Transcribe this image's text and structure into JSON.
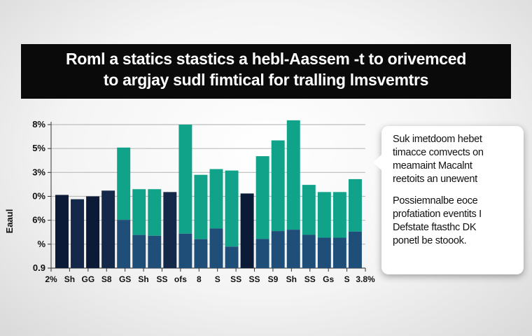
{
  "banner": {
    "line1": "Roml a statics stastics a hebl-Aassem -t to orivemced",
    "line2": "to argjay sudl fimtical for tralling lmsvemtrs"
  },
  "callout": {
    "para1": [
      "Suk imetdoom hebet",
      "timacce comvects on",
      "meamaint Macalnt",
      "reetoits an unewent"
    ],
    "para2": [
      "Possiemnalbe eoce",
      "profatiation eventits I",
      "Defstate ftasthc DK",
      "ponetl be stoook."
    ]
  },
  "colors": {
    "teal": "#10a38a",
    "blue": "#1f4f78",
    "navy": "#0b1a36",
    "banner": "#0a0a0a"
  },
  "chart_data": {
    "type": "bar",
    "ylabel": "Eaaul",
    "yticks": [
      "0.9",
      "%",
      "6%",
      "0%",
      "3%",
      "5%",
      "8%"
    ],
    "xticks": [
      "2%",
      "Sh",
      "GG",
      "S8",
      "GS",
      "Sh",
      "SS",
      "ofs",
      "8",
      "S",
      "SS",
      "SS",
      "S9",
      "Sh",
      "SS",
      "Gs",
      "S",
      "3.8%"
    ],
    "ylim": [
      0,
      1
    ],
    "grid": true,
    "bars": [
      {
        "total": 0.51,
        "teal": 0.0
      },
      {
        "total": 0.48,
        "teal": 0.0
      },
      {
        "total": 0.5,
        "teal": 0.0
      },
      {
        "total": 0.54,
        "teal": 0.0
      },
      {
        "total": 0.84,
        "teal": 0.6
      },
      {
        "total": 0.55,
        "teal": 0.58
      },
      {
        "total": 0.55,
        "teal": 0.59
      },
      {
        "total": 0.53,
        "teal": 0.0
      },
      {
        "total": 1.0,
        "teal": 0.76
      },
      {
        "total": 0.65,
        "teal": 0.69
      },
      {
        "total": 0.69,
        "teal": 0.6
      },
      {
        "total": 0.68,
        "teal": 0.78
      },
      {
        "total": 0.52,
        "teal": 0.0
      },
      {
        "total": 0.78,
        "teal": 0.74
      },
      {
        "total": 0.89,
        "teal": 0.71
      },
      {
        "total": 1.03,
        "teal": 0.74
      },
      {
        "total": 0.58,
        "teal": 0.6
      },
      {
        "total": 0.53,
        "teal": 0.6
      },
      {
        "total": 0.53,
        "teal": 0.6
      },
      {
        "total": 0.62,
        "teal": 0.59
      }
    ]
  }
}
